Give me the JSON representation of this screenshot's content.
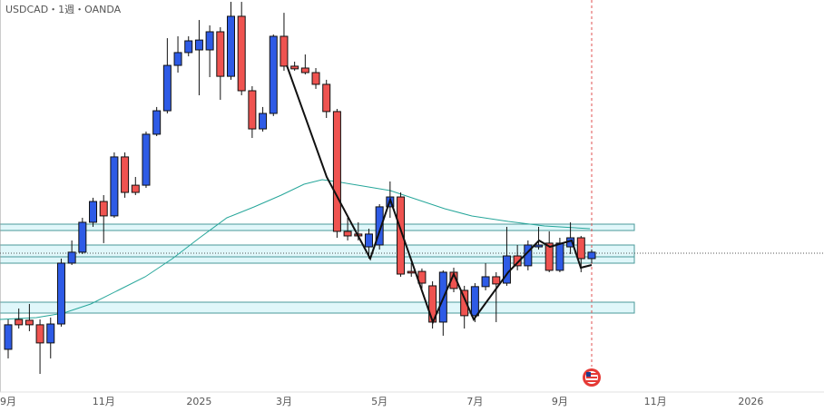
{
  "chart_data": {
    "type": "candlestick",
    "title": "USDCAD・1週・OANDA",
    "up_color": "#2e5be6",
    "down_color": "#ef5350",
    "xlim": [
      -0.77,
      76.9
    ],
    "ylim": [
      1.3331,
      1.48
    ],
    "xticks": [
      {
        "value": 0,
        "label": "9月"
      },
      {
        "value": 9,
        "label": "11月"
      },
      {
        "value": 18,
        "label": "2025"
      },
      {
        "value": 26,
        "label": "3月"
      },
      {
        "value": 35,
        "label": "5月"
      },
      {
        "value": 44,
        "label": "7月"
      },
      {
        "value": 52,
        "label": "9月"
      },
      {
        "value": 61,
        "label": "11月"
      },
      {
        "value": 70,
        "label": "2026"
      }
    ],
    "open": [
      1.3491,
      1.3603,
      1.36,
      1.3583,
      1.3515,
      1.3586,
      1.3814,
      1.3855,
      1.3967,
      1.4045,
      1.3991,
      1.4212,
      1.4106,
      1.4106,
      1.4297,
      1.4385,
      1.4555,
      1.4603,
      1.4613,
      1.4613,
      1.4681,
      1.4514,
      1.4739,
      1.446,
      1.4317,
      1.4375,
      1.4664,
      1.4552,
      1.4545,
      1.4528,
      1.4484,
      1.4382,
      1.3933,
      1.3923,
      1.3875,
      1.3882,
      1.4025,
      1.4062,
      1.3783,
      1.3783,
      1.3729,
      1.3593,
      1.378,
      1.3712,
      1.3617,
      1.3726,
      1.3763,
      1.3739,
      1.3841,
      1.3804,
      1.3875,
      1.3889,
      1.3787,
      1.3875,
      1.3909,
      1.3831
    ],
    "high": [
      1.3603,
      1.3644,
      1.3661,
      1.3603,
      1.361,
      1.3831,
      1.3899,
      1.3984,
      1.4059,
      1.4069,
      1.4229,
      1.4229,
      1.4137,
      1.4307,
      1.4399,
      1.4657,
      1.4664,
      1.4664,
      1.4725,
      1.4705,
      1.4698,
      1.4793,
      1.4793,
      1.4477,
      1.4399,
      1.4671,
      1.4752,
      1.4569,
      1.4596,
      1.4545,
      1.4501,
      1.4392,
      1.3984,
      1.3967,
      1.3943,
      1.4035,
      1.412,
      1.4079,
      1.3814,
      1.3794,
      1.3746,
      1.3787,
      1.3797,
      1.3729,
      1.3739,
      1.3814,
      1.378,
      1.395,
      1.3882,
      1.3899,
      1.395,
      1.3933,
      1.3909,
      1.3967,
      1.3916,
      1.3865
    ],
    "low": [
      1.3457,
      1.3569,
      1.3559,
      1.3399,
      1.3457,
      1.3576,
      1.3807,
      1.3848,
      1.395,
      1.3889,
      1.3984,
      1.4059,
      1.4069,
      1.4096,
      1.429,
      1.4375,
      1.4528,
      1.4589,
      1.4443,
      1.4511,
      1.4426,
      1.4501,
      1.4443,
      1.4283,
      1.4307,
      1.4365,
      1.4535,
      1.4535,
      1.4521,
      1.4467,
      1.4358,
      1.3909,
      1.3899,
      1.3899,
      1.3831,
      1.3865,
      1.3984,
      1.3763,
      1.3763,
      1.3719,
      1.3569,
      1.3542,
      1.3705,
      1.3569,
      1.3593,
      1.3712,
      1.3593,
      1.3729,
      1.3787,
      1.3787,
      1.3865,
      1.378,
      1.378,
      1.3848,
      1.378,
      1.3814
    ],
    "close": [
      1.3583,
      1.3583,
      1.3583,
      1.3515,
      1.3586,
      1.3814,
      1.3855,
      1.3967,
      1.4045,
      1.3991,
      1.4212,
      1.4079,
      1.4079,
      1.4297,
      1.4385,
      1.4555,
      1.4603,
      1.4647,
      1.465,
      1.4681,
      1.4514,
      1.4739,
      1.446,
      1.4317,
      1.4375,
      1.4664,
      1.4552,
      1.4542,
      1.4528,
      1.4484,
      1.4382,
      1.3933,
      1.3916,
      1.3916,
      1.3923,
      1.4025,
      1.4062,
      1.3773,
      1.3777,
      1.3739,
      1.3593,
      1.378,
      1.3719,
      1.3617,
      1.3726,
      1.3763,
      1.3736,
      1.3841,
      1.3804,
      1.3882,
      1.3882,
      1.3787,
      1.3889,
      1.3909,
      1.3831,
      1.3855
    ]
  }
}
